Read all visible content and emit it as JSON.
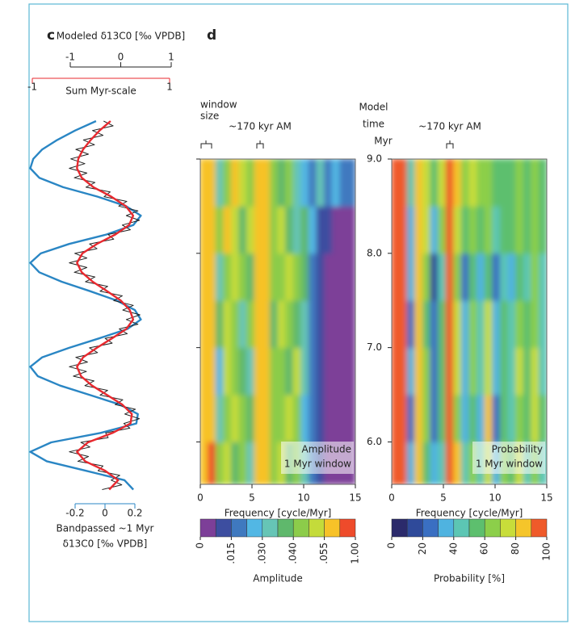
{
  "panel_labels": [
    "c",
    "d"
  ],
  "chart_data": [
    {
      "type": "line",
      "ylim": [
        5.5,
        9.4
      ],
      "axes": [
        {
          "label": "Modeled δ13C0 [‰ VPDB]",
          "color": "#222222",
          "xlim": [
            -1,
            1
          ],
          "xticks": [
            -1,
            0,
            1
          ]
        },
        {
          "label": "Sum Myr-scale",
          "color": "#e8292f",
          "xlim": [
            -1,
            1
          ],
          "xticks": [
            -1,
            1
          ]
        },
        {
          "label": [
            "Bandpassed ~1 Myr",
            "δ13C0 [‰ VPDB]"
          ],
          "color": "#2a86c4",
          "xlim": [
            -0.2,
            0.2
          ],
          "xticks": [
            -0.2,
            0,
            0.2
          ]
        }
      ],
      "series": [
        {
          "color": "#2a86c4",
          "axis": 2,
          "x": [
            9.4,
            9.3,
            9.2,
            9.1,
            9.0,
            8.9,
            8.8,
            8.7,
            8.6,
            8.5,
            8.4,
            8.3,
            8.2,
            8.1,
            8.0,
            7.9,
            7.8,
            7.7,
            7.6,
            7.5,
            7.4,
            7.3,
            7.2,
            7.1,
            7.0,
            6.9,
            6.8,
            6.7,
            6.6,
            6.5,
            6.4,
            6.3,
            6.2,
            6.1,
            6.0,
            5.9,
            5.8,
            5.7,
            5.6,
            5.5
          ],
          "values": [
            -0.06,
            -0.2,
            -0.32,
            -0.42,
            -0.48,
            -0.5,
            -0.44,
            -0.28,
            -0.05,
            0.14,
            0.24,
            0.19,
            0.01,
            -0.24,
            -0.43,
            -0.5,
            -0.44,
            -0.29,
            -0.1,
            0.08,
            0.2,
            0.24,
            0.15,
            -0.04,
            -0.24,
            -0.42,
            -0.5,
            -0.45,
            -0.3,
            -0.1,
            0.1,
            0.22,
            0.21,
            -0.03,
            -0.36,
            -0.5,
            -0.39,
            -0.13,
            0.13,
            0.19
          ]
        },
        {
          "color": "#222222",
          "axis": 0,
          "x": [
            9.4,
            9.35,
            9.3,
            9.25,
            9.2,
            9.15,
            9.1,
            9.05,
            9.0,
            8.95,
            8.9,
            8.85,
            8.8,
            8.75,
            8.7,
            8.65,
            8.6,
            8.55,
            8.5,
            8.45,
            8.4,
            8.35,
            8.3,
            8.25,
            8.2,
            8.15,
            8.1,
            8.05,
            8.0,
            7.95,
            7.9,
            7.85,
            7.8,
            7.75,
            7.7,
            7.65,
            7.6,
            7.55,
            7.5,
            7.45,
            7.4,
            7.35,
            7.3,
            7.25,
            7.2,
            7.15,
            7.1,
            7.05,
            7.0,
            6.95,
            6.9,
            6.85,
            6.8,
            6.75,
            6.7,
            6.65,
            6.6,
            6.55,
            6.5,
            6.45,
            6.4,
            6.35,
            6.3,
            6.25,
            6.2,
            6.15,
            6.1,
            6.05,
            6.0,
            5.95,
            5.9,
            5.85,
            5.8,
            5.75,
            5.7,
            5.65,
            5.6,
            5.55,
            5.5
          ],
          "values": [
            -0.34,
            -0.15,
            -0.56,
            -0.35,
            -0.74,
            -0.52,
            -0.89,
            -0.64,
            -0.99,
            -0.71,
            -1.02,
            -0.67,
            -0.92,
            -0.51,
            -0.69,
            -0.21,
            -0.33,
            0.12,
            -0.04,
            0.34,
            0.11,
            0.37,
            0.03,
            0.19,
            -0.25,
            -0.14,
            -0.62,
            -0.47,
            -0.91,
            -0.67,
            -1.02,
            -0.67,
            -0.92,
            -0.51,
            -0.7,
            -0.26,
            -0.41,
            0.03,
            -0.14,
            0.25,
            0.04,
            0.38,
            0.11,
            0.34,
            -0.03,
            0.13,
            -0.31,
            -0.17,
            -0.62,
            -0.46,
            -0.89,
            -0.66,
            -1.02,
            -0.68,
            -0.94,
            -0.53,
            -0.71,
            -0.26,
            -0.41,
            0.04,
            -0.11,
            0.29,
            0.08,
            0.37,
            0.06,
            0.18,
            -0.3,
            -0.25,
            -0.79,
            -0.61,
            -1.02,
            -0.64,
            -0.85,
            -0.35,
            -0.45,
            -0.02,
            -0.19,
            0.02,
            -0.37
          ]
        },
        {
          "color": "#e8292f",
          "axis": 1,
          "x": [
            9.4,
            9.3,
            9.2,
            9.1,
            9.0,
            8.9,
            8.8,
            8.7,
            8.6,
            8.5,
            8.4,
            8.3,
            8.2,
            8.1,
            8.0,
            7.9,
            7.8,
            7.7,
            7.6,
            7.5,
            7.4,
            7.3,
            7.2,
            7.1,
            7.0,
            6.9,
            6.8,
            6.7,
            6.6,
            6.5,
            6.4,
            6.3,
            6.2,
            6.1,
            6.0,
            5.9,
            5.8,
            5.7,
            5.6,
            5.5
          ],
          "values": [
            0.14,
            -0.02,
            -0.15,
            -0.26,
            -0.33,
            -0.35,
            -0.28,
            -0.11,
            0.15,
            0.36,
            0.47,
            0.41,
            0.21,
            -0.06,
            -0.27,
            -0.35,
            -0.28,
            -0.12,
            0.09,
            0.29,
            0.42,
            0.47,
            0.37,
            0.16,
            -0.06,
            -0.26,
            -0.35,
            -0.29,
            -0.13,
            0.09,
            0.31,
            0.45,
            0.43,
            0.17,
            -0.19,
            -0.35,
            -0.23,
            0.06,
            0.25,
            0.12
          ]
        }
      ]
    },
    {
      "type": "heatmap",
      "annotations": [
        [
          "window",
          "size"
        ],
        "~170 kyr AM"
      ],
      "box_label": [
        "Amplitude",
        "1 Myr window"
      ],
      "xlabel": "Frequency [cycle/Myr]",
      "xlim": [
        0,
        15
      ],
      "xticks": [
        0,
        5,
        10,
        15
      ],
      "ylim": [
        5.55,
        9.0
      ],
      "x": [
        0,
        0.75,
        1.5,
        2.25,
        3,
        3.75,
        4.5,
        5.25,
        6,
        6.75,
        7.5,
        8.25,
        9,
        9.75,
        10.5,
        11.25,
        12,
        12.75,
        13.5,
        14.25,
        15
      ],
      "y": [
        5.55,
        6.0,
        6.5,
        7.0,
        7.5,
        8.0,
        8.5,
        9.0
      ],
      "z": [
        [
          0.25,
          0.6,
          0.04,
          0.05,
          0.035,
          0.045,
          0.03,
          0.06,
          0.07,
          0.04,
          0.05,
          0.035,
          0.045,
          0.03,
          0.02,
          0.01,
          0.006,
          0.005,
          0.005,
          0.004
        ],
        [
          0.3,
          0.2,
          0.03,
          0.045,
          0.05,
          0.04,
          0.035,
          0.065,
          0.06,
          0.045,
          0.04,
          0.05,
          0.04,
          0.025,
          0.015,
          0.01,
          0.006,
          0.004,
          0.004,
          0.004
        ],
        [
          0.4,
          0.15,
          0.025,
          0.05,
          0.045,
          0.035,
          0.03,
          0.06,
          0.055,
          0.04,
          0.045,
          0.035,
          0.05,
          0.03,
          0.02,
          0.008,
          0.005,
          0.004,
          0.004,
          0.003
        ],
        [
          0.35,
          0.2,
          0.035,
          0.05,
          0.04,
          0.03,
          0.04,
          0.07,
          0.06,
          0.035,
          0.05,
          0.04,
          0.035,
          0.03,
          0.015,
          0.008,
          0.005,
          0.004,
          0.003,
          0.003
        ],
        [
          0.3,
          0.25,
          0.03,
          0.04,
          0.05,
          0.045,
          0.035,
          0.06,
          0.065,
          0.045,
          0.04,
          0.05,
          0.045,
          0.035,
          0.02,
          0.01,
          0.006,
          0.005,
          0.004,
          0.004
        ],
        [
          0.25,
          0.3,
          0.04,
          0.055,
          0.05,
          0.035,
          0.05,
          0.07,
          0.06,
          0.04,
          0.05,
          0.035,
          0.03,
          0.035,
          0.025,
          0.01,
          0.008,
          0.006,
          0.005,
          0.005
        ],
        [
          0.3,
          0.4,
          0.03,
          0.04,
          0.06,
          0.05,
          0.04,
          0.08,
          0.07,
          0.045,
          0.035,
          0.045,
          0.03,
          0.025,
          0.02,
          0.03,
          0.02,
          0.025,
          0.02,
          0.015
        ]
      ],
      "colorbar": {
        "label": "Amplitude",
        "colors": [
          "#7d3f98",
          "#3d4ea0",
          "#3f79bf",
          "#52b7e4",
          "#66c5b6",
          "#5fb86c",
          "#8ccc4a",
          "#c4db3a",
          "#f7c228",
          "#ee4b2b"
        ],
        "boundaries": [
          0,
          0.0075,
          0.015,
          0.0225,
          0.03,
          0.035,
          0.04,
          0.0475,
          0.055,
          0.5,
          1
        ],
        "ticks": [
          0,
          {
            "value": 0.015,
            "label": ".015"
          },
          {
            "value": 0.03,
            "label": ".030"
          },
          {
            "value": 0.04,
            "label": ".040"
          },
          {
            "value": 0.055,
            "label": ".055"
          },
          {
            "value": 1,
            "label": "1.00"
          }
        ]
      }
    },
    {
      "type": "heatmap",
      "annotations": [
        "~170 kyr AM"
      ],
      "box_label": [
        "Probability",
        "1 Myr window"
      ],
      "xlabel": "Frequency [cycle/Myr]",
      "ylabel": [
        "Model",
        "time",
        "Myr"
      ],
      "xlim": [
        0,
        15
      ],
      "xticks": [
        0,
        5,
        10,
        15
      ],
      "ylim": [
        5.55,
        9.0
      ],
      "yticks": [
        {
          "value": 6,
          "label": "6.0"
        },
        {
          "value": 7,
          "label": "7.0"
        },
        {
          "value": 8,
          "label": "8.0"
        },
        {
          "value": 9,
          "label": "9.0"
        }
      ],
      "x": [
        0,
        0.75,
        1.5,
        2.25,
        3,
        3.75,
        4.5,
        5.25,
        6,
        6.75,
        7.5,
        8.25,
        9,
        9.75,
        10.5,
        11.25,
        12,
        12.75,
        13.5,
        14.25,
        15
      ],
      "y": [
        5.55,
        6.0,
        6.5,
        7.0,
        7.5,
        8.0,
        8.5,
        9.0
      ],
      "z": [
        [
          98,
          90,
          35,
          80,
          55,
          30,
          45,
          95,
          80,
          40,
          65,
          45,
          70,
          35,
          60,
          50,
          70,
          45,
          65,
          40
        ],
        [
          99,
          96,
          25,
          88,
          65,
          20,
          55,
          92,
          65,
          30,
          55,
          35,
          80,
          25,
          50,
          40,
          60,
          55,
          75,
          50
        ],
        [
          99,
          94,
          30,
          82,
          60,
          25,
          50,
          96,
          70,
          35,
          60,
          45,
          75,
          30,
          55,
          45,
          75,
          50,
          70,
          45
        ],
        [
          99,
          95,
          28,
          86,
          58,
          22,
          52,
          94,
          72,
          38,
          62,
          40,
          78,
          32,
          58,
          48,
          62,
          52,
          68,
          42
        ],
        [
          98,
          93,
          32,
          84,
          62,
          18,
          48,
          97,
          68,
          25,
          50,
          30,
          55,
          20,
          40,
          35,
          55,
          45,
          60,
          40
        ],
        [
          99,
          95,
          30,
          85,
          70,
          35,
          60,
          90,
          72,
          55,
          65,
          50,
          60,
          45,
          55,
          50,
          60,
          55,
          65,
          50
        ],
        [
          99,
          92,
          40,
          80,
          75,
          50,
          70,
          96,
          80,
          65,
          70,
          62,
          65,
          55,
          58,
          52,
          60,
          58,
          62,
          55
        ]
      ],
      "colorbar": {
        "label": "Probability [%]",
        "colors": [
          "#2b2a6b",
          "#2f4a9a",
          "#3a6fc2",
          "#4fb3e0",
          "#5cc6b4",
          "#5dbf6e",
          "#8ccf4a",
          "#c8dd3a",
          "#f5c52a",
          "#ef5a2a"
        ],
        "boundaries": [
          0,
          10,
          20,
          30,
          40,
          50,
          60,
          70,
          80,
          90,
          100
        ],
        "ticks": [
          0,
          20,
          40,
          60,
          80,
          100
        ]
      }
    }
  ]
}
